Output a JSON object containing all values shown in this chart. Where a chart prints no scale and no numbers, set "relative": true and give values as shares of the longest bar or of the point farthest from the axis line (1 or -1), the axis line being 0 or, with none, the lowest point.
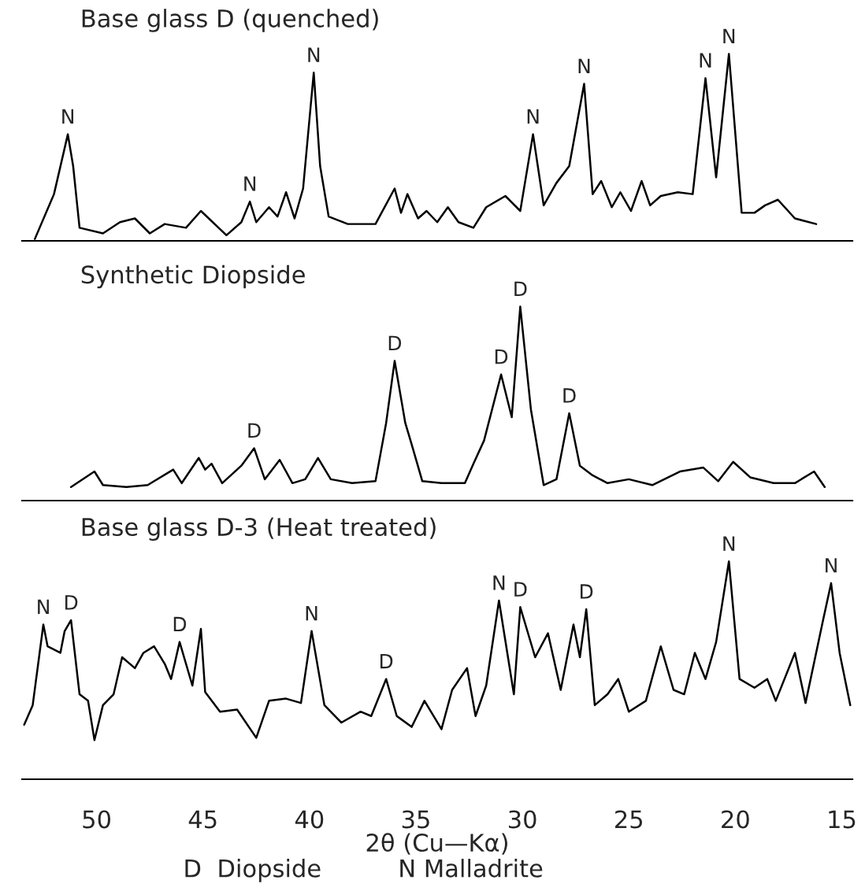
{
  "chart_data": [
    {
      "type": "line",
      "title": "Base glass D (quenched)",
      "relative": true,
      "xlim": [
        53.5,
        14.5
      ],
      "xticks": [
        50,
        45,
        40,
        35,
        30,
        25,
        20,
        15
      ],
      "tick_labels": false,
      "series": [
        {
          "color": "#000000",
          "x": [
            52.9,
            52.0,
            51.35,
            51.1,
            50.8,
            49.7,
            48.9,
            48.2,
            47.5,
            46.8,
            45.8,
            45.1,
            43.9,
            43.2,
            42.8,
            42.5,
            41.9,
            41.5,
            41.1,
            40.7,
            40.3,
            39.8,
            39.5,
            39.1,
            38.2,
            36.9,
            36.0,
            35.7,
            35.4,
            34.9,
            34.5,
            34.0,
            33.5,
            33.0,
            32.3,
            31.7,
            30.8,
            30.1,
            29.5,
            29.0,
            28.4,
            27.8,
            27.1,
            26.7,
            26.3,
            25.8,
            25.4,
            24.9,
            24.4,
            24.0,
            23.5,
            22.7,
            22.0,
            21.4,
            20.9,
            20.3,
            19.7,
            19.1,
            18.6,
            18.0,
            17.2,
            16.2
          ],
          "values": [
            0.01,
            0.25,
            0.57,
            0.4,
            0.07,
            0.04,
            0.1,
            0.12,
            0.04,
            0.09,
            0.07,
            0.16,
            0.03,
            0.1,
            0.21,
            0.1,
            0.18,
            0.13,
            0.26,
            0.12,
            0.28,
            0.9,
            0.4,
            0.13,
            0.09,
            0.09,
            0.28,
            0.15,
            0.25,
            0.12,
            0.16,
            0.1,
            0.18,
            0.1,
            0.07,
            0.18,
            0.24,
            0.16,
            0.57,
            0.19,
            0.31,
            0.4,
            0.84,
            0.25,
            0.32,
            0.18,
            0.26,
            0.16,
            0.32,
            0.19,
            0.24,
            0.26,
            0.25,
            0.87,
            0.34,
            1.0,
            0.15,
            0.15,
            0.19,
            0.22,
            0.12,
            0.09
          ]
        }
      ],
      "annotations": [
        {
          "text": "N",
          "x": 51.35,
          "y": 0.57
        },
        {
          "text": "N",
          "x": 42.8,
          "y": 0.21
        },
        {
          "text": "N",
          "x": 39.8,
          "y": 0.9
        },
        {
          "text": "N",
          "x": 29.5,
          "y": 0.57
        },
        {
          "text": "N",
          "x": 27.1,
          "y": 0.84
        },
        {
          "text": "N",
          "x": 21.4,
          "y": 0.87
        },
        {
          "text": "N",
          "x": 20.3,
          "y": 1.0
        }
      ]
    },
    {
      "type": "line",
      "title": "Synthetic Diopside",
      "relative": true,
      "xlim": [
        53.5,
        14.5
      ],
      "xticks": [
        50,
        45,
        40,
        35,
        30,
        25,
        20,
        15
      ],
      "tick_labels": false,
      "series": [
        {
          "color": "#000000",
          "x": [
            51.2,
            50.1,
            49.7,
            48.6,
            47.6,
            46.4,
            46.0,
            45.2,
            44.9,
            44.6,
            44.1,
            43.2,
            42.6,
            42.1,
            41.4,
            40.8,
            40.2,
            39.6,
            39.0,
            38.0,
            36.9,
            36.4,
            36.0,
            35.5,
            35.2,
            34.7,
            33.8,
            32.7,
            32.3,
            31.8,
            31.0,
            30.5,
            30.1,
            29.6,
            29.0,
            28.4,
            27.8,
            27.3,
            26.7,
            26.0,
            25.0,
            23.9,
            22.6,
            21.5,
            20.8,
            20.1,
            19.3,
            18.2,
            17.2,
            16.3,
            15.8
          ],
          "values": [
            0.07,
            0.15,
            0.08,
            0.07,
            0.08,
            0.16,
            0.09,
            0.22,
            0.16,
            0.19,
            0.09,
            0.18,
            0.27,
            0.11,
            0.21,
            0.09,
            0.11,
            0.22,
            0.11,
            0.09,
            0.1,
            0.4,
            0.72,
            0.4,
            0.29,
            0.1,
            0.09,
            0.09,
            0.19,
            0.31,
            0.65,
            0.43,
            1.0,
            0.47,
            0.08,
            0.11,
            0.45,
            0.18,
            0.13,
            0.09,
            0.11,
            0.08,
            0.15,
            0.17,
            0.1,
            0.2,
            0.12,
            0.09,
            0.09,
            0.15,
            0.07
          ]
        }
      ],
      "annotations": [
        {
          "text": "D",
          "x": 42.6,
          "y": 0.27
        },
        {
          "text": "D",
          "x": 36.0,
          "y": 0.72
        },
        {
          "text": "D",
          "x": 31.0,
          "y": 0.65
        },
        {
          "text": "D",
          "x": 30.1,
          "y": 1.0
        },
        {
          "text": "D",
          "x": 27.8,
          "y": 0.45
        }
      ]
    },
    {
      "type": "line",
      "title": "Base glass D-3 (Heat treated)",
      "relative": true,
      "xlim": [
        53.5,
        14.5
      ],
      "xticks": [
        50,
        45,
        40,
        35,
        30,
        25,
        20,
        15
      ],
      "xlabel": "2θ (Cu—Kα)",
      "series": [
        {
          "color": "#000000",
          "x": [
            53.4,
            53.0,
            52.5,
            52.3,
            51.7,
            51.5,
            51.2,
            50.8,
            50.4,
            50.1,
            49.7,
            49.2,
            48.8,
            48.2,
            47.8,
            47.3,
            46.8,
            46.5,
            46.1,
            45.5,
            45.1,
            44.9,
            44.2,
            43.4,
            42.5,
            41.9,
            41.1,
            40.4,
            39.9,
            39.3,
            38.5,
            37.6,
            37.1,
            36.4,
            35.9,
            35.2,
            34.6,
            33.8,
            33.3,
            32.6,
            32.2,
            31.7,
            31.1,
            30.4,
            30.1,
            29.4,
            28.8,
            28.2,
            27.6,
            27.3,
            27.0,
            26.6,
            26.0,
            25.5,
            25.0,
            24.2,
            23.5,
            22.9,
            22.4,
            21.9,
            21.4,
            20.9,
            20.3,
            19.8,
            19.1,
            18.5,
            18.1,
            17.2,
            16.7,
            15.9,
            15.5,
            15.1,
            14.6
          ],
          "values": [
            0.25,
            0.34,
            0.71,
            0.61,
            0.58,
            0.68,
            0.73,
            0.39,
            0.36,
            0.18,
            0.34,
            0.39,
            0.56,
            0.51,
            0.58,
            0.61,
            0.53,
            0.46,
            0.63,
            0.43,
            0.69,
            0.4,
            0.31,
            0.32,
            0.19,
            0.36,
            0.37,
            0.35,
            0.68,
            0.34,
            0.26,
            0.31,
            0.29,
            0.46,
            0.29,
            0.24,
            0.36,
            0.23,
            0.41,
            0.51,
            0.29,
            0.43,
            0.82,
            0.39,
            0.79,
            0.56,
            0.67,
            0.41,
            0.71,
            0.56,
            0.78,
            0.34,
            0.39,
            0.46,
            0.31,
            0.36,
            0.61,
            0.41,
            0.39,
            0.58,
            0.46,
            0.63,
            1.0,
            0.46,
            0.42,
            0.46,
            0.36,
            0.58,
            0.35,
            0.72,
            0.9,
            0.58,
            0.34
          ]
        }
      ],
      "annotations": [
        {
          "text": "N",
          "x": 52.5,
          "y": 0.71
        },
        {
          "text": "D",
          "x": 51.2,
          "y": 0.73
        },
        {
          "text": "D",
          "x": 46.1,
          "y": 0.63
        },
        {
          "text": "N",
          "x": 39.9,
          "y": 0.68
        },
        {
          "text": "D",
          "x": 36.4,
          "y": 0.46
        },
        {
          "text": "N",
          "x": 31.1,
          "y": 0.82
        },
        {
          "text": "D",
          "x": 30.1,
          "y": 0.79
        },
        {
          "text": "D",
          "x": 27.0,
          "y": 0.78
        },
        {
          "text": "N",
          "x": 20.3,
          "y": 1.0
        },
        {
          "text": "N",
          "x": 15.5,
          "y": 0.9
        },
        "D  Diopside          N Malladrite"
      ]
    }
  ]
}
